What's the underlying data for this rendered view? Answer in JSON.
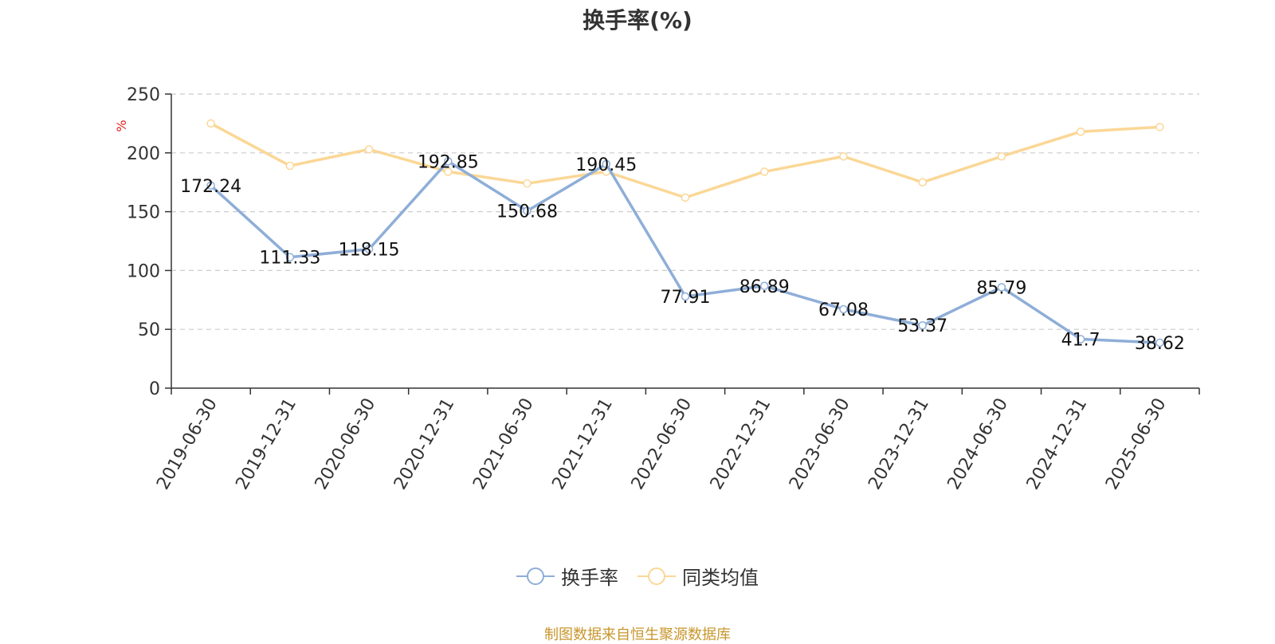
{
  "chart_data": {
    "type": "line",
    "title": "换手率(%)",
    "ylabel": "%",
    "ylim": [
      0,
      250
    ],
    "yticks": [
      0,
      50,
      100,
      150,
      200,
      250
    ],
    "grid": true,
    "legend_position": "bottom-center",
    "categories": [
      "2019-06-30",
      "2019-12-31",
      "2020-06-30",
      "2020-12-31",
      "2021-06-30",
      "2021-12-31",
      "2022-06-30",
      "2022-12-31",
      "2023-06-30",
      "2023-12-31",
      "2024-06-30",
      "2024-12-31",
      "2025-06-30"
    ],
    "series": [
      {
        "name": "换手率",
        "color": "#8eaed8",
        "values": [
          172.24,
          111.33,
          118.15,
          192.85,
          150.68,
          190.45,
          77.91,
          86.89,
          67.08,
          53.37,
          85.79,
          41.7,
          38.62
        ],
        "labels": [
          "172.24",
          "111.33",
          "118.15",
          "192.85",
          "150.68",
          "190.45",
          "77.91",
          "86.89",
          "67.08",
          "53.37",
          "85.79",
          "41.7",
          "38.62"
        ]
      },
      {
        "name": "同类均值",
        "color": "#fbd796",
        "values": [
          225,
          189,
          203,
          184,
          174,
          184,
          162,
          184,
          197,
          175,
          197,
          218,
          222
        ]
      }
    ]
  },
  "source_note": "制图数据来自恒生聚源数据库"
}
